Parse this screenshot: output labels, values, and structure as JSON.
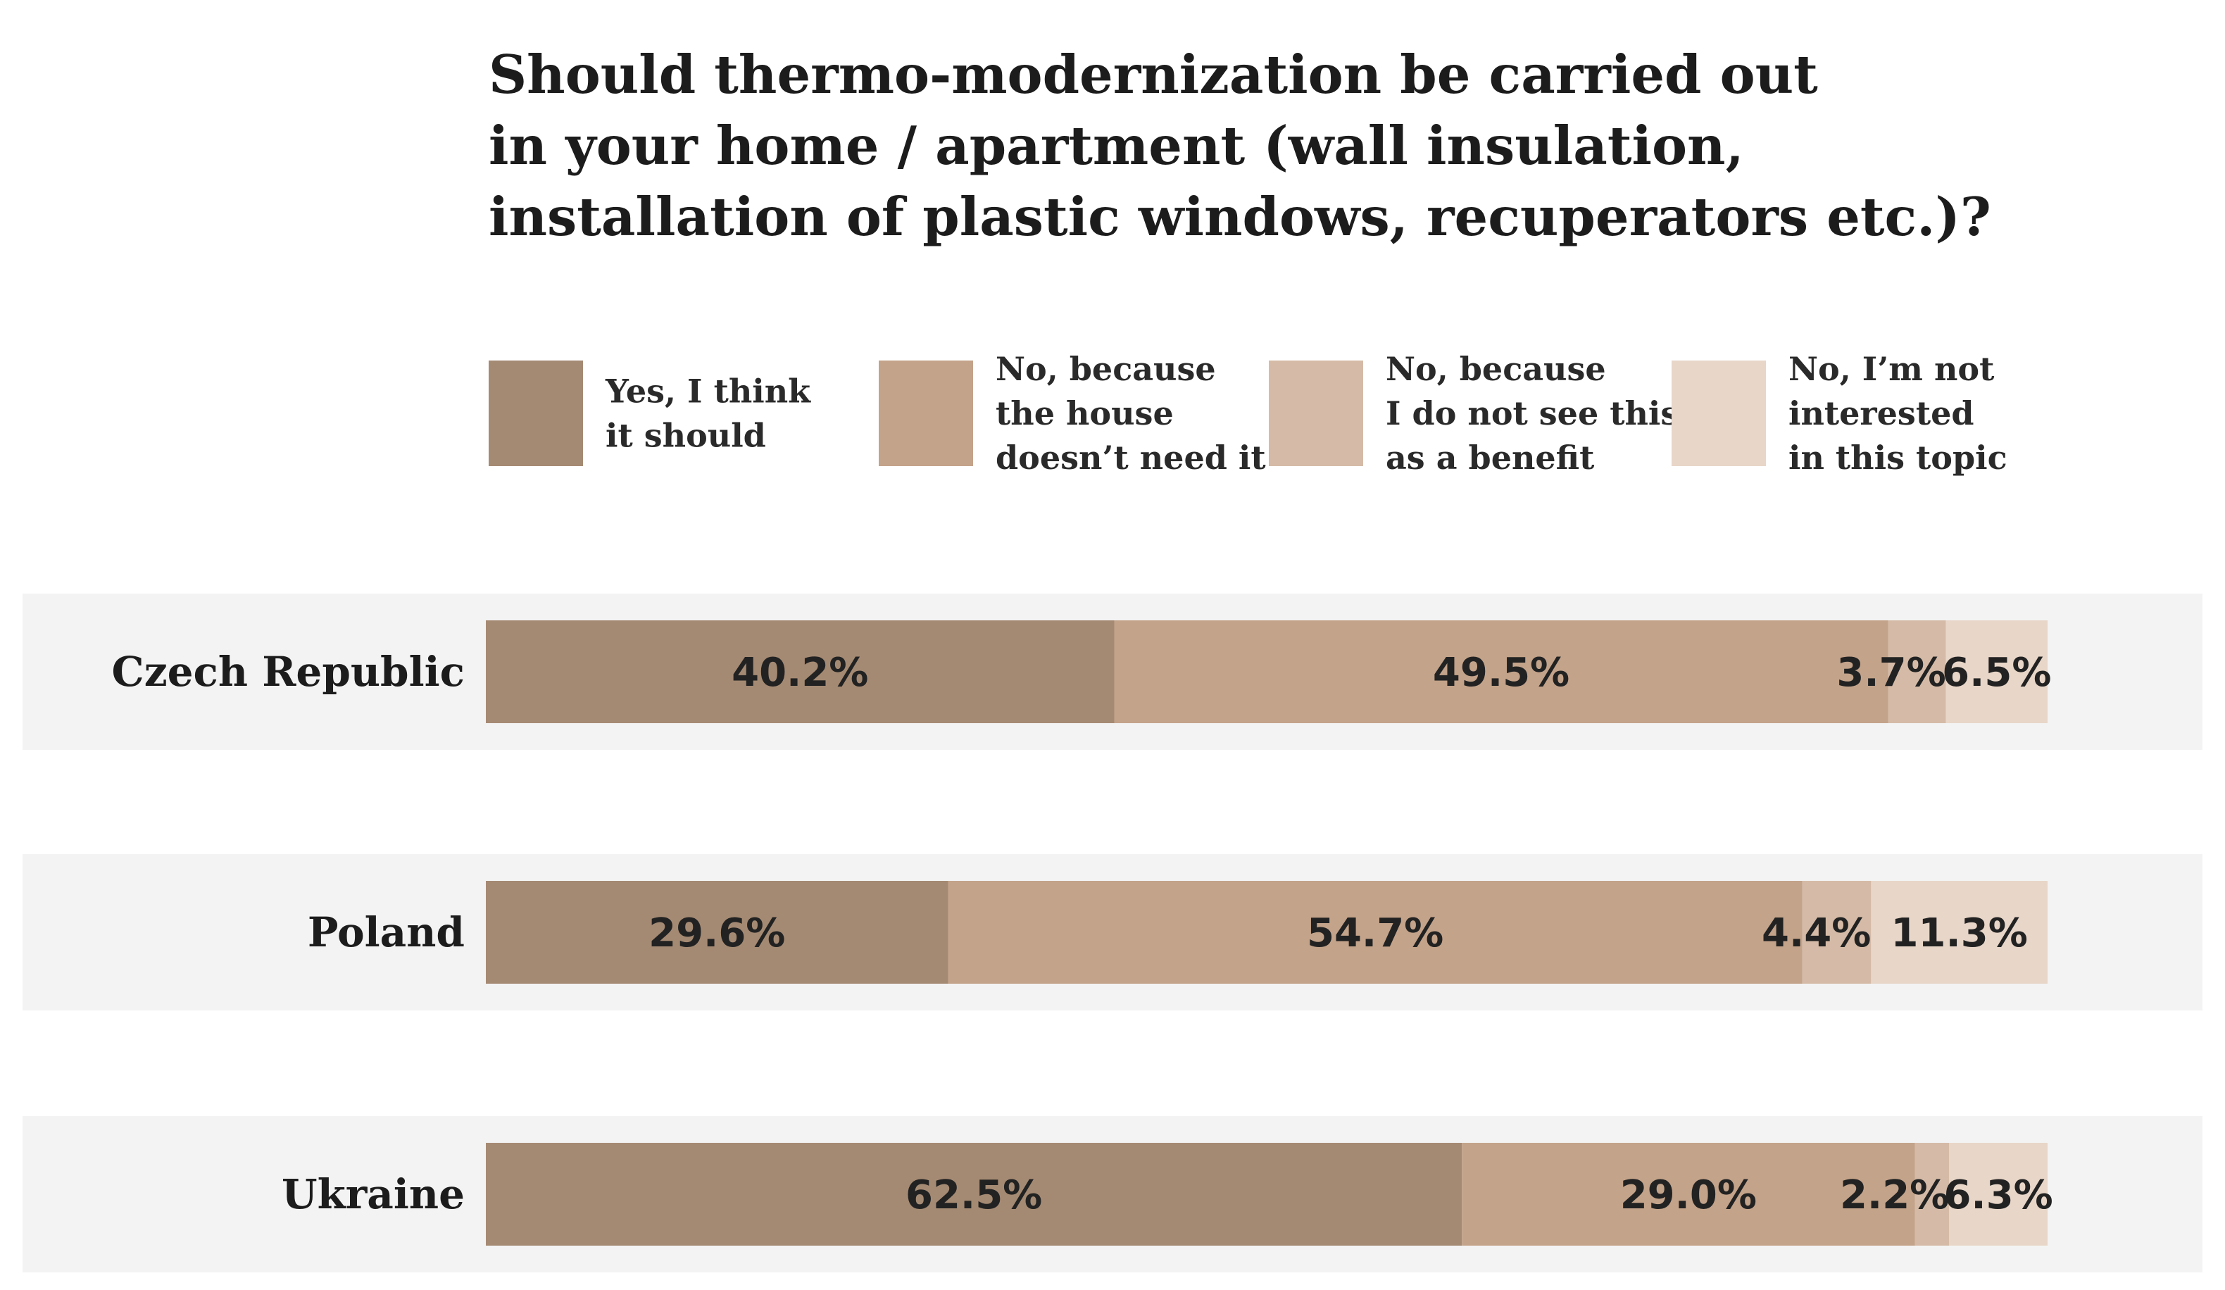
{
  "chart_data": {
    "type": "bar",
    "orientation": "horizontal",
    "stacked": true,
    "title": "Should thermo-modernization be carried out in your home / apartment (wall insulation, installation of plastic windows, recuperators etc.)?",
    "title_lines": [
      "Should thermo-modernization be carried out",
      "in your home / apartment (wall insulation,",
      "installation of plastic windows, recuperators etc.)?"
    ],
    "categories": [
      "Czech Republic",
      "Poland",
      "Ukraine"
    ],
    "xlim": [
      0,
      100
    ],
    "xlabel": "",
    "ylabel": "",
    "grid": false,
    "legend_position": "top",
    "series": [
      {
        "name": "Yes, I think it should",
        "legend_lines": [
          "Yes, I think",
          "it should"
        ],
        "color": "#a58a73",
        "values": [
          40.2,
          29.6,
          62.5
        ],
        "labels": [
          "40.2%",
          "29.6%",
          "62.5%"
        ]
      },
      {
        "name": "No, because the house doesn't need it",
        "legend_lines": [
          "No, because",
          "the house",
          "doesn’t need it"
        ],
        "color": "#c3a38a",
        "values": [
          49.5,
          54.7,
          29.0
        ],
        "labels": [
          "49.5%",
          "54.7%",
          "29.0%"
        ]
      },
      {
        "name": "No, because I do not see this as a benefit",
        "legend_lines": [
          "No, because",
          "I do not see this",
          "as a benefit"
        ],
        "color": "#d5bba7",
        "values": [
          3.7,
          4.4,
          2.2
        ],
        "labels": [
          "3.7%",
          "4.4%",
          "2.2%"
        ]
      },
      {
        "name": "No, I'm not interested in this topic",
        "legend_lines": [
          "No, I’m not",
          "interested",
          "in this topic"
        ],
        "color": "#e8d6c8",
        "values": [
          6.5,
          11.3,
          6.3
        ],
        "labels": [
          "6.5%",
          "11.3%",
          "6.3%"
        ]
      }
    ],
    "band_color": "#f3f3f3"
  }
}
